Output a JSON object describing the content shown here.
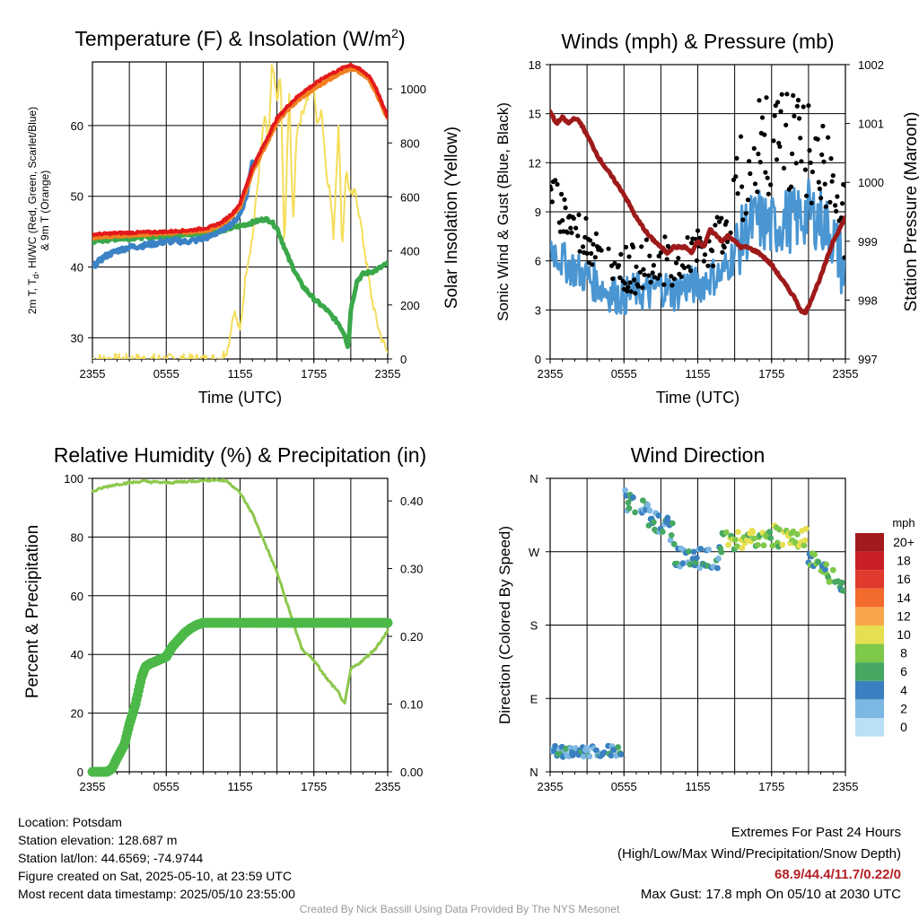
{
  "colors": {
    "t2m": "#e31a1c",
    "td": "#3aa84a",
    "hiwc_green": "#3cb034",
    "hiwc_scarlet": "#d62020",
    "hiwc_blue": "#3b82c4",
    "t9m": "#f08020",
    "solar": "#f5dd5a",
    "wind": "#4a96d2",
    "gust": "#000000",
    "pressure": "#9e1a1a",
    "rh": "#8cc84c",
    "precip": "#4cb848"
  },
  "chart_data": [
    {
      "id": "temperature",
      "type": "line",
      "title": "Temperature (F) & Insolation (W/m²)",
      "title_main": "Temperature (F) & Insolation (W/m",
      "title_sup": "2",
      "title_end": ")",
      "xlabel": "Time (UTC)",
      "ylabel_line1": "2m T, T",
      "ylabel_sub": "d",
      "ylabel_line1b": ", HI/WC (Red, Green, Scarlet/Blue)",
      "ylabel_line2": "& 9m T (Orange)",
      "y2label": "Solar Insolation (Yellow)",
      "x_ticks": [
        "2355",
        "0555",
        "1155",
        "1755",
        "2355"
      ],
      "ylim": [
        27,
        69
      ],
      "y_ticks": [
        30,
        40,
        50,
        60
      ],
      "y2lim": [
        0,
        1100
      ],
      "y2_ticks": [
        0,
        200,
        400,
        600,
        800,
        1000
      ],
      "series": [
        {
          "key": "t9m",
          "x": [
            0,
            2,
            4,
            6,
            8,
            9.5,
            10.5,
            11.5,
            12,
            13,
            14,
            15,
            16,
            17,
            18,
            19,
            20,
            20.5,
            21,
            21.5,
            22,
            22.5,
            23,
            23.5,
            24
          ],
          "y": [
            44.2,
            44.4,
            44.6,
            44.8,
            45,
            45.3,
            46,
            47.5,
            48.5,
            53.5,
            57,
            60.5,
            62.5,
            64,
            65.2,
            66.3,
            67.3,
            67.8,
            68,
            67.8,
            67.2,
            66.5,
            65,
            63,
            61
          ]
        },
        {
          "key": "t2m",
          "x": [
            0,
            2,
            4,
            6,
            8,
            9.5,
            10.5,
            11.5,
            12,
            13,
            14,
            15,
            16,
            17,
            18,
            19,
            20,
            20.5,
            21,
            21.5,
            22,
            22.5,
            23,
            23.5,
            24
          ],
          "y": [
            44.6,
            44.8,
            44.9,
            45,
            45.2,
            45.6,
            46.3,
            47.8,
            49,
            54,
            57.5,
            61,
            63,
            64.6,
            65.8,
            67,
            67.8,
            68.3,
            68.6,
            68.2,
            67.6,
            67,
            65.5,
            63.3,
            61.2
          ]
        },
        {
          "key": "td",
          "x": [
            0,
            2,
            4,
            6,
            8,
            10,
            11,
            12,
            13,
            14,
            14.5,
            15,
            16,
            17,
            18,
            19,
            19.5,
            20,
            20.5,
            20.8,
            21,
            21.5,
            22,
            23,
            24
          ],
          "y": [
            43.6,
            44,
            44.2,
            44.4,
            44.6,
            45,
            45.4,
            45.8,
            46.3,
            46.8,
            46.5,
            45.5,
            41,
            37.5,
            35.5,
            34,
            33,
            32,
            30.5,
            28.5,
            34,
            38,
            39,
            39.5,
            40.5
          ]
        },
        {
          "key": "hiwc_blue",
          "x": [
            0,
            1,
            2,
            3,
            4,
            5,
            6,
            7,
            7.5,
            8.5,
            9.5,
            10.5,
            11.5,
            12,
            12.5,
            13
          ],
          "y": [
            40,
            41.5,
            42.3,
            42.8,
            43,
            43.3,
            43.6,
            43.7,
            43.6,
            43.8,
            44.3,
            45.2,
            46.4,
            47.5,
            50,
            55
          ]
        },
        {
          "key": "solar",
          "axis": "y2",
          "x": [
            0,
            2,
            4,
            6,
            8,
            10,
            10.5,
            11,
            11.5,
            12,
            12.5,
            13,
            13.5,
            14,
            14.3,
            14.6,
            15,
            15.3,
            15.6,
            16,
            16.3,
            16.6,
            17,
            17.3,
            17.6,
            18,
            18.3,
            18.6,
            19,
            19.3,
            19.6,
            20,
            20.3,
            20.6,
            21,
            21.4,
            21.8,
            22.2,
            22.6,
            23,
            23.4,
            24
          ],
          "y": [
            0,
            0,
            0,
            0,
            0,
            0,
            5,
            40,
            180,
            100,
            330,
            450,
            680,
            900,
            780,
            1090,
            960,
            1050,
            400,
            1000,
            480,
            850,
            900,
            950,
            980,
            1010,
            850,
            940,
            700,
            620,
            450,
            880,
            400,
            700,
            600,
            620,
            500,
            380,
            250,
            160,
            90,
            20
          ]
        }
      ]
    },
    {
      "id": "winds",
      "type": "scatter",
      "title": "Winds (mph) & Pressure (mb)",
      "xlabel": "Time (UTC)",
      "ylabel": "Sonic Wind & Gust (Blue, Black)",
      "y2label": "Station Pressure (Maroon)",
      "x_ticks": [
        "2355",
        "0555",
        "1155",
        "1755",
        "2355"
      ],
      "ylim": [
        0,
        18
      ],
      "y_ticks": [
        0,
        3,
        6,
        9,
        12,
        15,
        18
      ],
      "y2lim": [
        997,
        1002
      ],
      "y2_ticks": [
        997,
        998,
        999,
        1000,
        1001,
        1002
      ],
      "series": [
        {
          "key": "wind",
          "x": [
            0,
            1,
            2,
            3,
            4,
            5,
            6,
            7,
            8,
            9,
            10,
            11,
            12,
            13,
            14,
            15,
            16,
            17,
            18,
            19,
            20,
            21,
            22,
            23,
            24
          ],
          "y": [
            7,
            6,
            5.5,
            5,
            4.5,
            4,
            3.8,
            4.2,
            4,
            4.5,
            4,
            4.5,
            4.5,
            5,
            5.2,
            6.5,
            8,
            8.5,
            8,
            8.5,
            8.5,
            9,
            8.5,
            7.5,
            5
          ]
        },
        {
          "key": "gust",
          "x": [
            0,
            1,
            2,
            3,
            4,
            5,
            6,
            7,
            8,
            9,
            10,
            11,
            12,
            13,
            14,
            15,
            16,
            17,
            18,
            19,
            20,
            21,
            22,
            23,
            24
          ],
          "y": [
            10,
            9,
            8,
            7.5,
            6.5,
            6,
            5.5,
            5.5,
            6,
            6,
            6,
            6.5,
            6.5,
            7,
            7.5,
            10,
            12,
            13,
            13,
            13.5,
            13,
            12.5,
            12,
            11,
            8
          ]
        },
        {
          "key": "pressure",
          "axis": "y2",
          "x": [
            0,
            0.5,
            1,
            1.5,
            2,
            2.5,
            3,
            4,
            5,
            6,
            7,
            8,
            9,
            9.5,
            10,
            11,
            11.5,
            12,
            12.5,
            13,
            13.5,
            14,
            14.5,
            15,
            15.5,
            16,
            17,
            18,
            19,
            20,
            20.4,
            20.8,
            21.2,
            22,
            23,
            24
          ],
          "y": [
            1001.2,
            1001,
            1001.1,
            1001,
            1001.1,
            1001,
            1000.8,
            1000.4,
            1000.1,
            999.8,
            999.4,
            999.1,
            998.9,
            998.8,
            998.9,
            998.9,
            998.8,
            999,
            998.9,
            999.2,
            999.1,
            999,
            999.1,
            999,
            998.9,
            998.9,
            998.8,
            998.6,
            998.3,
            998.0,
            997.8,
            997.8,
            998.0,
            998.4,
            999.0,
            999.4
          ]
        }
      ]
    },
    {
      "id": "humidity",
      "type": "line",
      "title": "Relative Humidity (%) & Precipitation (in)",
      "xlabel": "",
      "ylabel": "Percent & Precipitation",
      "x_ticks": [
        "2355",
        "0555",
        "1155",
        "1755",
        "2355"
      ],
      "ylim": [
        0,
        100
      ],
      "y_ticks": [
        0,
        20,
        40,
        60,
        80,
        100
      ],
      "y2lim": [
        0,
        0.4333
      ],
      "y2_ticks": [
        0.0,
        0.1,
        0.2,
        0.3,
        0.4
      ],
      "series": [
        {
          "key": "rh",
          "x": [
            0,
            1,
            2,
            3,
            4,
            6,
            8,
            9,
            10,
            11,
            12,
            13,
            14,
            15,
            16,
            17,
            18,
            19,
            20,
            20.5,
            21,
            22,
            23,
            24
          ],
          "y": [
            95.5,
            97,
            98,
            98.5,
            99,
            98.5,
            99,
            99.3,
            99.5,
            99,
            95,
            88,
            78,
            68,
            55,
            42,
            38,
            32,
            27,
            23,
            35,
            38,
            42,
            48
          ]
        },
        {
          "key": "precip",
          "axis": "y2",
          "x": [
            0,
            1.2,
            1.6,
            2,
            2.6,
            3,
            3.5,
            4,
            4.3,
            4.7,
            5,
            6,
            6.5,
            7,
            7.5,
            8,
            8.5,
            9,
            10,
            12,
            14,
            16,
            18,
            20,
            22,
            24
          ],
          "y": [
            0,
            0,
            0.005,
            0.02,
            0.04,
            0.07,
            0.1,
            0.14,
            0.155,
            0.16,
            0.162,
            0.17,
            0.185,
            0.195,
            0.205,
            0.212,
            0.217,
            0.22,
            0.22,
            0.22,
            0.22,
            0.22,
            0.22,
            0.22,
            0.22,
            0.22
          ]
        }
      ]
    },
    {
      "id": "direction",
      "type": "scatter",
      "title": "Wind Direction",
      "ylabel": "Direction (Colored By Speed)",
      "x_ticks": [
        "2355",
        "0555",
        "1155",
        "1755",
        "2355"
      ],
      "y_ticks": [
        "N",
        "E",
        "S",
        "W",
        "N"
      ],
      "ylim": [
        0,
        360
      ],
      "colorbar": {
        "unit": "mph",
        "labels": [
          "20+",
          "18",
          "16",
          "14",
          "12",
          "10",
          "8",
          "6",
          "4",
          "2",
          "0"
        ],
        "colors": [
          "#a31a1c",
          "#c81e24",
          "#e03a2c",
          "#f26a2c",
          "#f8a64a",
          "#e6df50",
          "#7ec84a",
          "#46a862",
          "#3a80c0",
          "#7cb8e2",
          "#b8e0f6"
        ]
      },
      "segments": [
        {
          "x0": 0,
          "x1": 5.8,
          "y": 25,
          "spread": 7,
          "speed": 4
        },
        {
          "x0": 6.1,
          "x1": 10,
          "y": 335,
          "spread": 14,
          "speed": 4
        },
        {
          "x0": 10,
          "x1": 14,
          "y": 265,
          "spread": 16,
          "speed": 4
        },
        {
          "x0": 14,
          "x1": 18,
          "y": 285,
          "spread": 12,
          "speed": 8
        },
        {
          "x0": 18,
          "x1": 21,
          "y": 290,
          "spread": 14,
          "speed": 9
        },
        {
          "x0": 21,
          "x1": 24,
          "y": 240,
          "spread": 10,
          "speed": 6
        }
      ]
    }
  ],
  "info": {
    "location": "Location: Potsdam",
    "elevation": "Station elevation: 128.687 m",
    "latlon": "Station lat/lon: 44.6569; -74.9744",
    "created": "Figure created on Sat, 2025-05-10, at 23:59 UTC",
    "recent": "Most recent data timestamp: 2025/05/10 23:55:00"
  },
  "extremes": {
    "title": "Extremes For Past 24 Hours",
    "subtitle": "(High/Low/Max Wind/Precipitation/Snow Depth)",
    "values": "68.9/44.4/11.7/0.22/0",
    "gust": "Max Gust: 17.8 mph On 05/10 at 2030 UTC"
  },
  "credit": "Created By Nick Bassill Using Data Provided By The NYS Mesonet"
}
